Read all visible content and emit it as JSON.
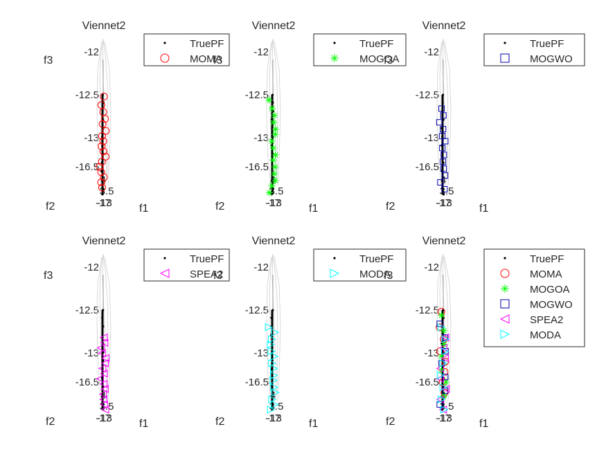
{
  "figure": {
    "background": "#ffffff"
  },
  "chart_data": [
    {
      "type": "scatter",
      "title": "Viennet2",
      "xlabel": "f1",
      "ylabel": "f2",
      "zlabel": "f3",
      "z_ticks": [
        "-12",
        "-12.5",
        "-13",
        "-16.5"
      ],
      "bottom_ticks": [
        "4",
        "3.5",
        "-17",
        "-13"
      ],
      "legend": {
        "location": "right",
        "entries": [
          {
            "name": "TruePF",
            "marker": "dot",
            "color": "#000000"
          },
          {
            "name": "MOMA",
            "marker": "circle",
            "color": "#ff0000"
          }
        ]
      },
      "series": [
        {
          "name": "TruePF",
          "color": "#000000",
          "f3": [
            -12.46,
            -12.55,
            -12.65,
            -12.75,
            -12.85,
            -12.95,
            -13.05,
            -13.15,
            -13.25,
            -13.35,
            -13.45,
            -13.55,
            -13.62
          ]
        },
        {
          "name": "MOMA",
          "color": "#ff0000",
          "f3": [
            -12.48,
            -12.58,
            -12.66,
            -12.74,
            -12.8,
            -12.88,
            -12.94,
            -13.0,
            -13.06,
            -13.12,
            -13.18,
            -13.24,
            -13.3,
            -13.36,
            -13.42,
            -13.48,
            -13.54
          ]
        }
      ]
    },
    {
      "type": "scatter",
      "title": "Viennet2",
      "xlabel": "f1",
      "ylabel": "f2",
      "zlabel": "f3",
      "z_ticks": [
        "-12",
        "-12.5",
        "-13",
        "-16.5"
      ],
      "bottom_ticks": [
        "4",
        "3.5",
        "-17",
        "-13"
      ],
      "legend": {
        "location": "right",
        "entries": [
          {
            "name": "TruePF",
            "marker": "dot",
            "color": "#000000"
          },
          {
            "name": "MOGOA",
            "marker": "asterisk",
            "color": "#00ff00"
          }
        ]
      },
      "series": [
        {
          "name": "TruePF",
          "color": "#000000",
          "f3": [
            -12.46,
            -12.55,
            -12.65,
            -12.75,
            -12.85,
            -12.95,
            -13.05,
            -13.15,
            -13.25,
            -13.35,
            -13.45,
            -13.55,
            -13.62
          ]
        },
        {
          "name": "MOGOA",
          "color": "#00ff00",
          "f3": [
            -12.52,
            -12.62,
            -12.7,
            -12.78,
            -12.86,
            -12.92,
            -13.0,
            -13.08,
            -13.16,
            -13.22,
            -13.3,
            -13.38,
            -13.46,
            -13.52,
            -13.6
          ]
        }
      ]
    },
    {
      "type": "scatter",
      "title": "Viennet2",
      "xlabel": "f1",
      "ylabel": "f2",
      "zlabel": "f3",
      "z_ticks": [
        "-12",
        "-12.5",
        "-13",
        "-16.5"
      ],
      "bottom_ticks": [
        "4",
        "3.5",
        "-17",
        "-13"
      ],
      "legend": {
        "location": "right",
        "entries": [
          {
            "name": "TruePF",
            "marker": "dot",
            "color": "#000000"
          },
          {
            "name": "MOGWO",
            "marker": "square",
            "color": "#0000aa"
          }
        ]
      },
      "series": [
        {
          "name": "TruePF",
          "color": "#000000",
          "f3": [
            -12.46,
            -12.55,
            -12.65,
            -12.75,
            -12.85,
            -12.95,
            -13.05,
            -13.15,
            -13.25,
            -13.35,
            -13.45,
            -13.55,
            -13.62
          ]
        },
        {
          "name": "MOGWO",
          "color": "#0000aa",
          "f3": [
            -12.62,
            -12.7,
            -12.78,
            -12.86,
            -12.94,
            -13.0,
            -13.08,
            -13.16,
            -13.24,
            -13.32,
            -13.4,
            -13.48,
            -13.56
          ]
        }
      ]
    },
    {
      "type": "scatter",
      "title": "Viennet2",
      "xlabel": "f1",
      "ylabel": "f2",
      "zlabel": "f3",
      "z_ticks": [
        "-12",
        "-12.5",
        "-13",
        "-16.5"
      ],
      "bottom_ticks": [
        "4",
        "3.5",
        "-17",
        "-13"
      ],
      "legend": {
        "location": "right",
        "entries": [
          {
            "name": "TruePF",
            "marker": "dot",
            "color": "#000000"
          },
          {
            "name": "SPEA2",
            "marker": "triangle-left",
            "color": "#ff00ff"
          }
        ]
      },
      "series": [
        {
          "name": "TruePF",
          "color": "#000000",
          "f3": [
            -12.46,
            -12.55,
            -12.65,
            -12.75,
            -12.85,
            -12.95,
            -13.05,
            -13.15,
            -13.25,
            -13.35,
            -13.45,
            -13.55,
            -13.62
          ]
        },
        {
          "name": "SPEA2",
          "color": "#ff00ff",
          "f3": [
            -12.78,
            -12.84,
            -12.9,
            -12.96,
            -13.02,
            -13.08,
            -13.14,
            -13.2,
            -13.26,
            -13.32,
            -13.38,
            -13.44,
            -13.5,
            -13.56,
            -13.62
          ]
        }
      ]
    },
    {
      "type": "scatter",
      "title": "Viennet2",
      "xlabel": "f1",
      "ylabel": "f2",
      "zlabel": "f3",
      "z_ticks": [
        "-12",
        "-12.5",
        "-13",
        "-16.5"
      ],
      "bottom_ticks": [
        "4",
        "3.5",
        "-17",
        "-13"
      ],
      "legend": {
        "location": "right",
        "entries": [
          {
            "name": "TruePF",
            "marker": "dot",
            "color": "#000000"
          },
          {
            "name": "MODA",
            "marker": "triangle-right",
            "color": "#00ffff"
          }
        ]
      },
      "series": [
        {
          "name": "TruePF",
          "color": "#000000",
          "f3": [
            -12.46,
            -12.55,
            -12.65,
            -12.75,
            -12.85,
            -12.95,
            -13.05,
            -13.15,
            -13.25,
            -13.35,
            -13.45,
            -13.55,
            -13.62
          ]
        },
        {
          "name": "MODA",
          "color": "#00ffff",
          "f3": [
            -12.66,
            -12.72,
            -12.8,
            -12.86,
            -12.94,
            -13.0,
            -13.08,
            -13.14,
            -13.22,
            -13.28,
            -13.36,
            -13.42,
            -13.5,
            -13.56,
            -13.62
          ]
        }
      ]
    },
    {
      "type": "scatter",
      "title": "Viennet2",
      "xlabel": "f1",
      "ylabel": "f2",
      "zlabel": "f3",
      "z_ticks": [
        "-12",
        "-12.5",
        "-13",
        "-16.5"
      ],
      "bottom_ticks": [
        "4",
        "3.5",
        "-17",
        "-13"
      ],
      "legend": {
        "location": "right",
        "entries": [
          {
            "name": "TruePF",
            "marker": "dot",
            "color": "#000000"
          },
          {
            "name": "MOMA",
            "marker": "circle",
            "color": "#ff0000"
          },
          {
            "name": "MOGOA",
            "marker": "asterisk",
            "color": "#00ff00"
          },
          {
            "name": "MOGWO",
            "marker": "square",
            "color": "#0000aa"
          },
          {
            "name": "SPEA2",
            "marker": "triangle-left",
            "color": "#ff00ff"
          },
          {
            "name": "MODA",
            "marker": "triangle-right",
            "color": "#00ffff"
          }
        ]
      },
      "series": [
        {
          "name": "TruePF",
          "color": "#000000",
          "f3": [
            -12.46,
            -12.55,
            -12.65,
            -12.75,
            -12.85,
            -12.95,
            -13.05,
            -13.15,
            -13.25,
            -13.35,
            -13.45,
            -13.55,
            -13.62
          ]
        },
        {
          "name": "MOMA",
          "color": "#ff0000",
          "f3": [
            -12.48,
            -12.66,
            -12.8,
            -12.94,
            -13.06,
            -13.18,
            -13.3,
            -13.42
          ]
        },
        {
          "name": "MOGOA",
          "color": "#00ff00",
          "f3": [
            -12.52,
            -12.7,
            -12.86,
            -13.0,
            -13.16,
            -13.3,
            -13.46
          ]
        },
        {
          "name": "MOGWO",
          "color": "#0000aa",
          "f3": [
            -12.62,
            -12.78,
            -12.94,
            -13.08,
            -13.24,
            -13.4,
            -13.56
          ]
        },
        {
          "name": "SPEA2",
          "color": "#ff00ff",
          "f3": [
            -12.78,
            -12.9,
            -13.02,
            -13.14,
            -13.26,
            -13.38,
            -13.5,
            -13.62
          ]
        },
        {
          "name": "MODA",
          "color": "#00ffff",
          "f3": [
            -12.66,
            -12.8,
            -12.94,
            -13.08,
            -13.22,
            -13.36,
            -13.5,
            -13.62
          ]
        }
      ]
    }
  ]
}
